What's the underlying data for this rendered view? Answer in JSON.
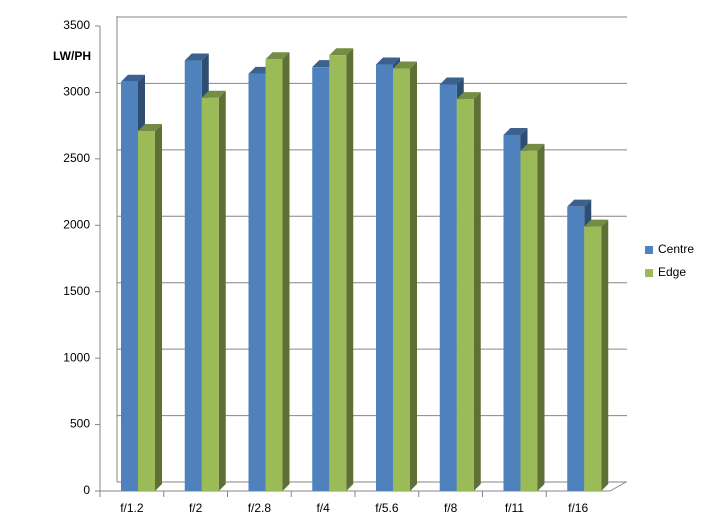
{
  "chart_data": {
    "type": "bar3d",
    "y_label": "LW/PH",
    "categories": [
      "f/1.2",
      "f/2",
      "f/2.8",
      "f/4",
      "f/5.6",
      "f/8",
      "f/11",
      "f/16"
    ],
    "series": [
      {
        "name": "Centre",
        "color": "#4f81bd",
        "values": [
          3080,
          3240,
          3140,
          3190,
          3210,
          3060,
          2680,
          2140
        ]
      },
      {
        "name": "Edge",
        "color": "#9bbb59",
        "values": [
          2710,
          2960,
          3250,
          3280,
          3180,
          2950,
          2560,
          1990
        ]
      }
    ],
    "ylim": [
      0,
      3500
    ],
    "yticks": [
      0,
      500,
      1000,
      1500,
      2000,
      2500,
      3000,
      3500
    ],
    "grid": true,
    "legend": "right"
  }
}
